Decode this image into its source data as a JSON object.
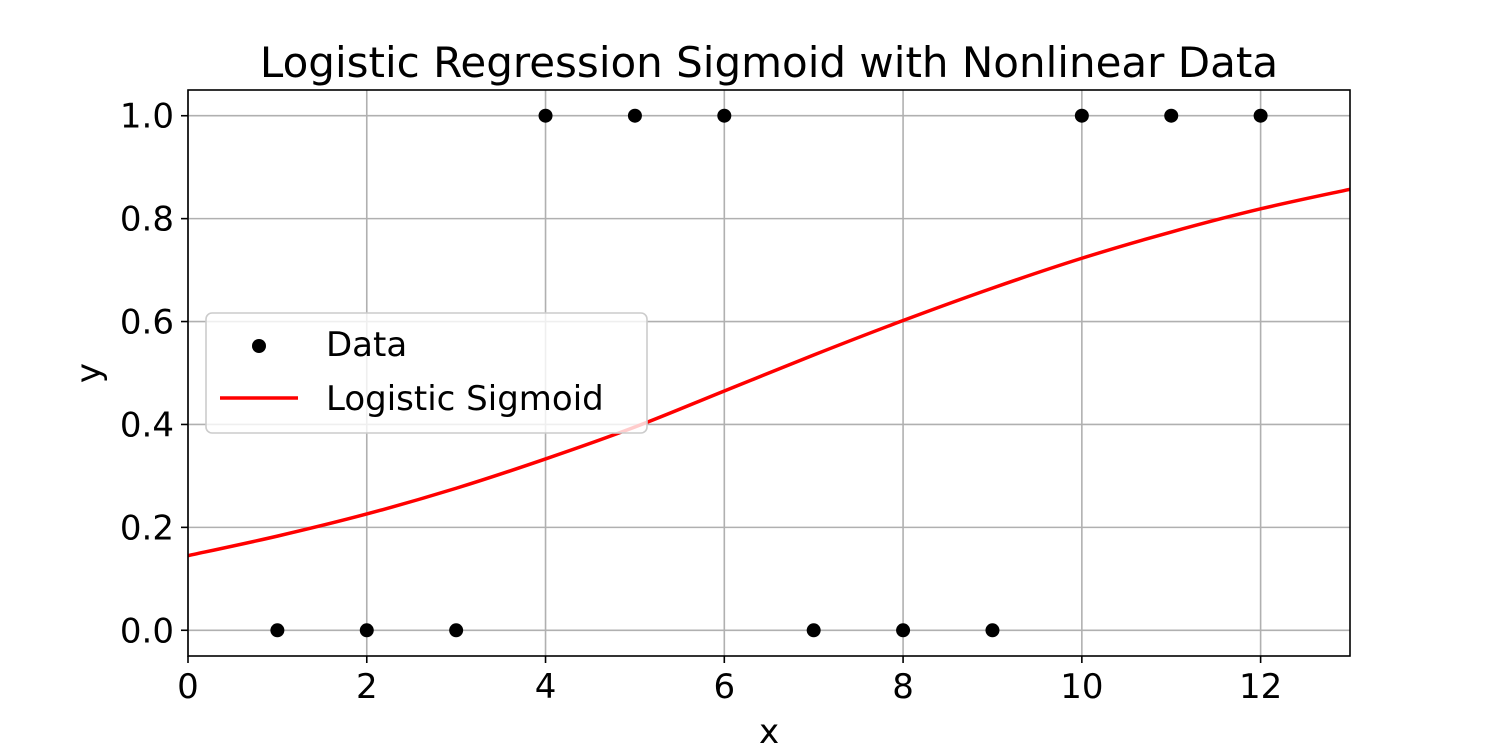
{
  "chart_data": {
    "type": "scatter",
    "title": "Logistic Regression Sigmoid with Nonlinear Data",
    "xlabel": "x",
    "ylabel": "y",
    "xlim": [
      0,
      13
    ],
    "ylim": [
      -0.05,
      1.05
    ],
    "x_ticks": [
      0,
      2,
      4,
      6,
      8,
      10,
      12
    ],
    "x_tick_labels": [
      "0",
      "2",
      "4",
      "6",
      "8",
      "10",
      "12"
    ],
    "y_ticks": [
      0.0,
      0.2,
      0.4,
      0.6,
      0.8,
      1.0
    ],
    "y_tick_labels": [
      "0.0",
      "0.2",
      "0.4",
      "0.6",
      "0.8",
      "1.0"
    ],
    "grid": true,
    "legend_position": "center-left",
    "series": [
      {
        "name": "Data",
        "kind": "scatter",
        "color": "#000000",
        "x": [
          1,
          2,
          3,
          4,
          5,
          6,
          7,
          8,
          9,
          10,
          11,
          12
        ],
        "y": [
          0,
          0,
          0,
          1,
          1,
          1,
          0,
          0,
          0,
          1,
          1,
          1
        ]
      },
      {
        "name": "Logistic Sigmoid",
        "kind": "line",
        "color": "#ff0000",
        "x": [
          0,
          1,
          2,
          3,
          4,
          5,
          6,
          7,
          8,
          9,
          10,
          11,
          12,
          13
        ],
        "y": [
          0.145,
          0.183,
          0.226,
          0.276,
          0.333,
          0.395,
          0.465,
          0.535,
          0.602,
          0.665,
          0.723,
          0.774,
          0.819,
          0.857
        ]
      }
    ]
  }
}
